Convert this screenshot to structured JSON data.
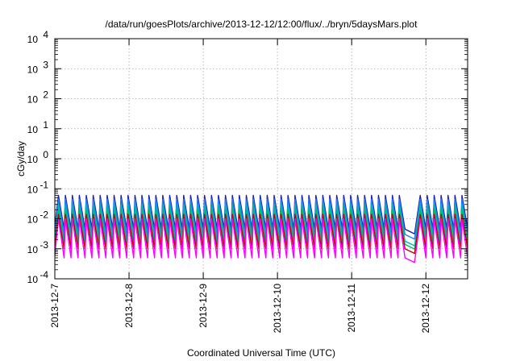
{
  "chart_data": {
    "type": "line",
    "title": "/data/run/goesPlots/archive/2013-12-12/12:00/flux/../bryn/5daysMars.plot",
    "xlabel": "Coordinated Universal Time (UTC)",
    "ylabel": "cGy/day",
    "y_scale": "log",
    "ylim": [
      0.0001,
      10000
    ],
    "y_ticks": [
      {
        "value": 0.0001,
        "base": "10",
        "exp": "-4"
      },
      {
        "value": 0.001,
        "base": "10",
        "exp": "-3"
      },
      {
        "value": 0.01,
        "base": "10",
        "exp": "-2"
      },
      {
        "value": 0.1,
        "base": "10",
        "exp": "-1"
      },
      {
        "value": 1,
        "base": "10",
        "exp": "0"
      },
      {
        "value": 10,
        "base": "10",
        "exp": "1"
      },
      {
        "value": 100,
        "base": "10",
        "exp": "2"
      },
      {
        "value": 1000,
        "base": "10",
        "exp": "3"
      },
      {
        "value": 10000,
        "base": "10",
        "exp": "4"
      }
    ],
    "x_ticks": [
      "2013-12-7",
      "2013-12-8",
      "2013-12-9",
      "2013-12-10",
      "2013-12-11",
      "2013-12-12"
    ],
    "xlim": [
      "2013-12-07T00:00",
      "2013-12-12T13:30"
    ],
    "grid": true,
    "legend": "none",
    "pattern": {
      "description_free": true,
      "peak_times": [
        "2013-12-07T01:10",
        "2013-12-07T03:25",
        "2013-12-07T05:40",
        "2013-12-07T07:55",
        "2013-12-07T10:10",
        "2013-12-07T12:25",
        "2013-12-07T14:40",
        "2013-12-07T16:55",
        "2013-12-07T19:10",
        "2013-12-07T21:25",
        "2013-12-07T23:40",
        "2013-12-08T01:55",
        "2013-12-08T04:10",
        "2013-12-08T06:25",
        "2013-12-08T08:40",
        "2013-12-08T10:55",
        "2013-12-08T13:10",
        "2013-12-08T15:25",
        "2013-12-08T17:40",
        "2013-12-08T19:55",
        "2013-12-08T22:10",
        "2013-12-09T00:25",
        "2013-12-09T02:40",
        "2013-12-09T04:55",
        "2013-12-09T07:10",
        "2013-12-09T09:25",
        "2013-12-09T11:40",
        "2013-12-09T13:55",
        "2013-12-09T16:10",
        "2013-12-09T18:25",
        "2013-12-09T20:40",
        "2013-12-09T22:55",
        "2013-12-10T01:10",
        "2013-12-10T03:25",
        "2013-12-10T05:40",
        "2013-12-10T07:55",
        "2013-12-10T10:10",
        "2013-12-10T12:25",
        "2013-12-10T14:40",
        "2013-12-10T16:55",
        "2013-12-10T19:10",
        "2013-12-10T21:25",
        "2013-12-10T23:40",
        "2013-12-11T01:55",
        "2013-12-11T04:10",
        "2013-12-11T06:25",
        "2013-12-11T08:40",
        "2013-12-11T10:55",
        "2013-12-11T13:10",
        "2013-12-11T15:25",
        "2013-12-11T17:40",
        "2013-12-11T19:55",
        "2013-12-11T22:10",
        "2013-12-12T00:25",
        "2013-12-12T02:40",
        "2013-12-12T04:55",
        "2013-12-12T07:10",
        "2013-12-12T09:25",
        "2013-12-12T11:40"
      ],
      "data_gap": [
        "2013-12-11T17:40",
        "2013-12-11T20:30"
      ]
    },
    "series": [
      {
        "color": "#1f1fa8",
        "peak": 0.06,
        "trough": 0.0045
      },
      {
        "color": "#2080ff",
        "peak": 0.045,
        "trough": 0.003
      },
      {
        "color": "#00b4b4",
        "peak": 0.03,
        "trough": 0.0018
      },
      {
        "color": "#00c060",
        "peak": 0.02,
        "trough": 0.0014
      },
      {
        "color": "#c00000",
        "peak": 0.014,
        "trough": 0.001
      },
      {
        "color": "#ff00ff",
        "peak": 0.01,
        "trough": 0.0005
      }
    ]
  }
}
